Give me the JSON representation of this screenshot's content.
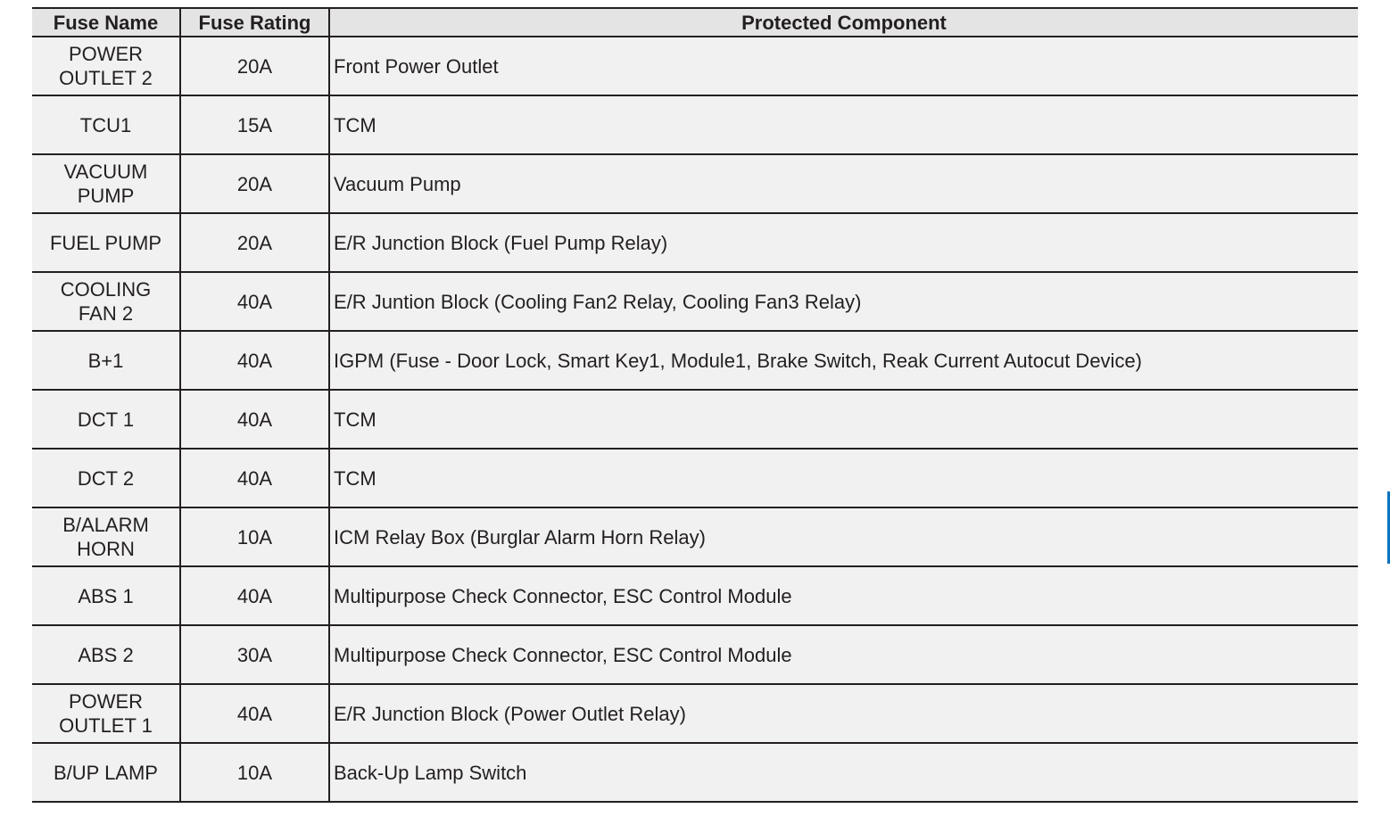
{
  "headers": [
    "Fuse Name",
    "Fuse Rating",
    "Protected Component"
  ],
  "rows": [
    {
      "name": "POWER\nOUTLET 2",
      "rating": "20A",
      "component": "Front Power Outlet"
    },
    {
      "name": "TCU1",
      "rating": "15A",
      "component": "TCM"
    },
    {
      "name": "VACUUM\nPUMP",
      "rating": "20A",
      "component": "Vacuum Pump"
    },
    {
      "name": "FUEL PUMP",
      "rating": "20A",
      "component": "E/R Junction Block (Fuel Pump Relay)"
    },
    {
      "name": "COOLING\nFAN 2",
      "rating": "40A",
      "component": "E/R Juntion Block (Cooling Fan2 Relay, Cooling Fan3 Relay)"
    },
    {
      "name": "B+1",
      "rating": "40A",
      "component": "IGPM (Fuse - Door Lock, Smart Key1, Module1, Brake Switch, Reak Current Autocut Device)"
    },
    {
      "name": "DCT 1",
      "rating": "40A",
      "component": "TCM"
    },
    {
      "name": "DCT 2",
      "rating": "40A",
      "component": "TCM"
    },
    {
      "name": "B/ALARM\nHORN",
      "rating": "10A",
      "component": "ICM Relay Box (Burglar Alarm Horn Relay)"
    },
    {
      "name": "ABS 1",
      "rating": "40A",
      "component": "Multipurpose Check Connector, ESC Control Module"
    },
    {
      "name": "ABS 2",
      "rating": "30A",
      "component": "Multipurpose Check Connector, ESC Control Module"
    },
    {
      "name": "POWER\nOUTLET 1",
      "rating": "40A",
      "component": "E/R Junction Block (Power Outlet Relay)"
    },
    {
      "name": "B/UP LAMP",
      "rating": "10A",
      "component": "Back-Up Lamp Switch"
    }
  ],
  "colors": {
    "header_bg": "#e4e4e4",
    "row_bg": "#f1f1f1",
    "side_tab": "#0a74c0"
  }
}
